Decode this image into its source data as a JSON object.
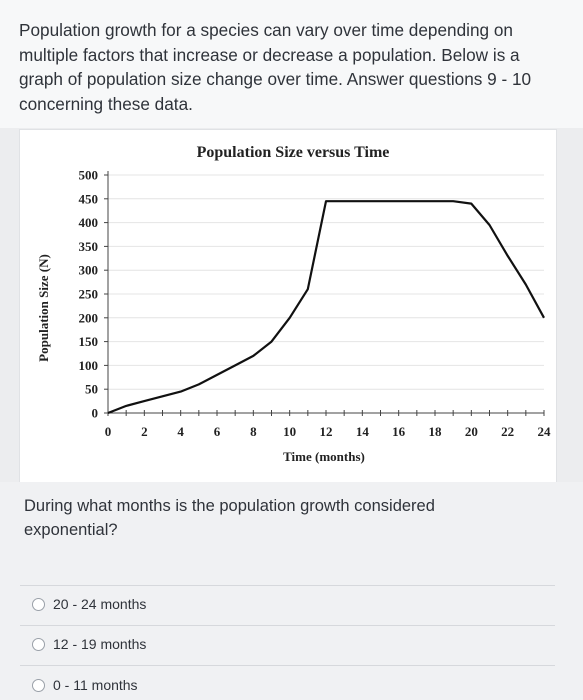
{
  "intro_text": "Population growth for a species can vary over time depending on multiple factors that increase or decrease a population. Below is a graph of population size change over time. Answer questions 9 - 10 concerning these data.",
  "question": "During what months is the population growth considered exponential?",
  "options": [
    {
      "label": "20 - 24 months"
    },
    {
      "label": "12 - 19 months"
    },
    {
      "label": "0 - 11 months"
    }
  ],
  "chart_data": {
    "type": "line",
    "title": "Population Size versus Time",
    "xlabel": "Time (months)",
    "ylabel": "Population Size (N)",
    "xlim": [
      0,
      24
    ],
    "ylim": [
      0,
      500
    ],
    "xticks": [
      0,
      2,
      4,
      6,
      8,
      10,
      12,
      14,
      16,
      18,
      20,
      22,
      24
    ],
    "yticks": [
      0,
      50,
      100,
      150,
      200,
      250,
      300,
      350,
      400,
      450,
      500
    ],
    "grid": true,
    "x": [
      0,
      1,
      2,
      3,
      4,
      5,
      6,
      7,
      8,
      9,
      10,
      11,
      12,
      13,
      14,
      15,
      16,
      17,
      18,
      19,
      20,
      21,
      22,
      23,
      24
    ],
    "series": [
      {
        "values": [
          0,
          15,
          25,
          35,
          45,
          60,
          80,
          100,
          120,
          150,
          200,
          260,
          445,
          445,
          445,
          445,
          445,
          445,
          445,
          445,
          440,
          395,
          330,
          270,
          200
        ]
      }
    ],
    "colors": {
      "line": "#111111",
      "grid": "#e4e4e4"
    }
  }
}
